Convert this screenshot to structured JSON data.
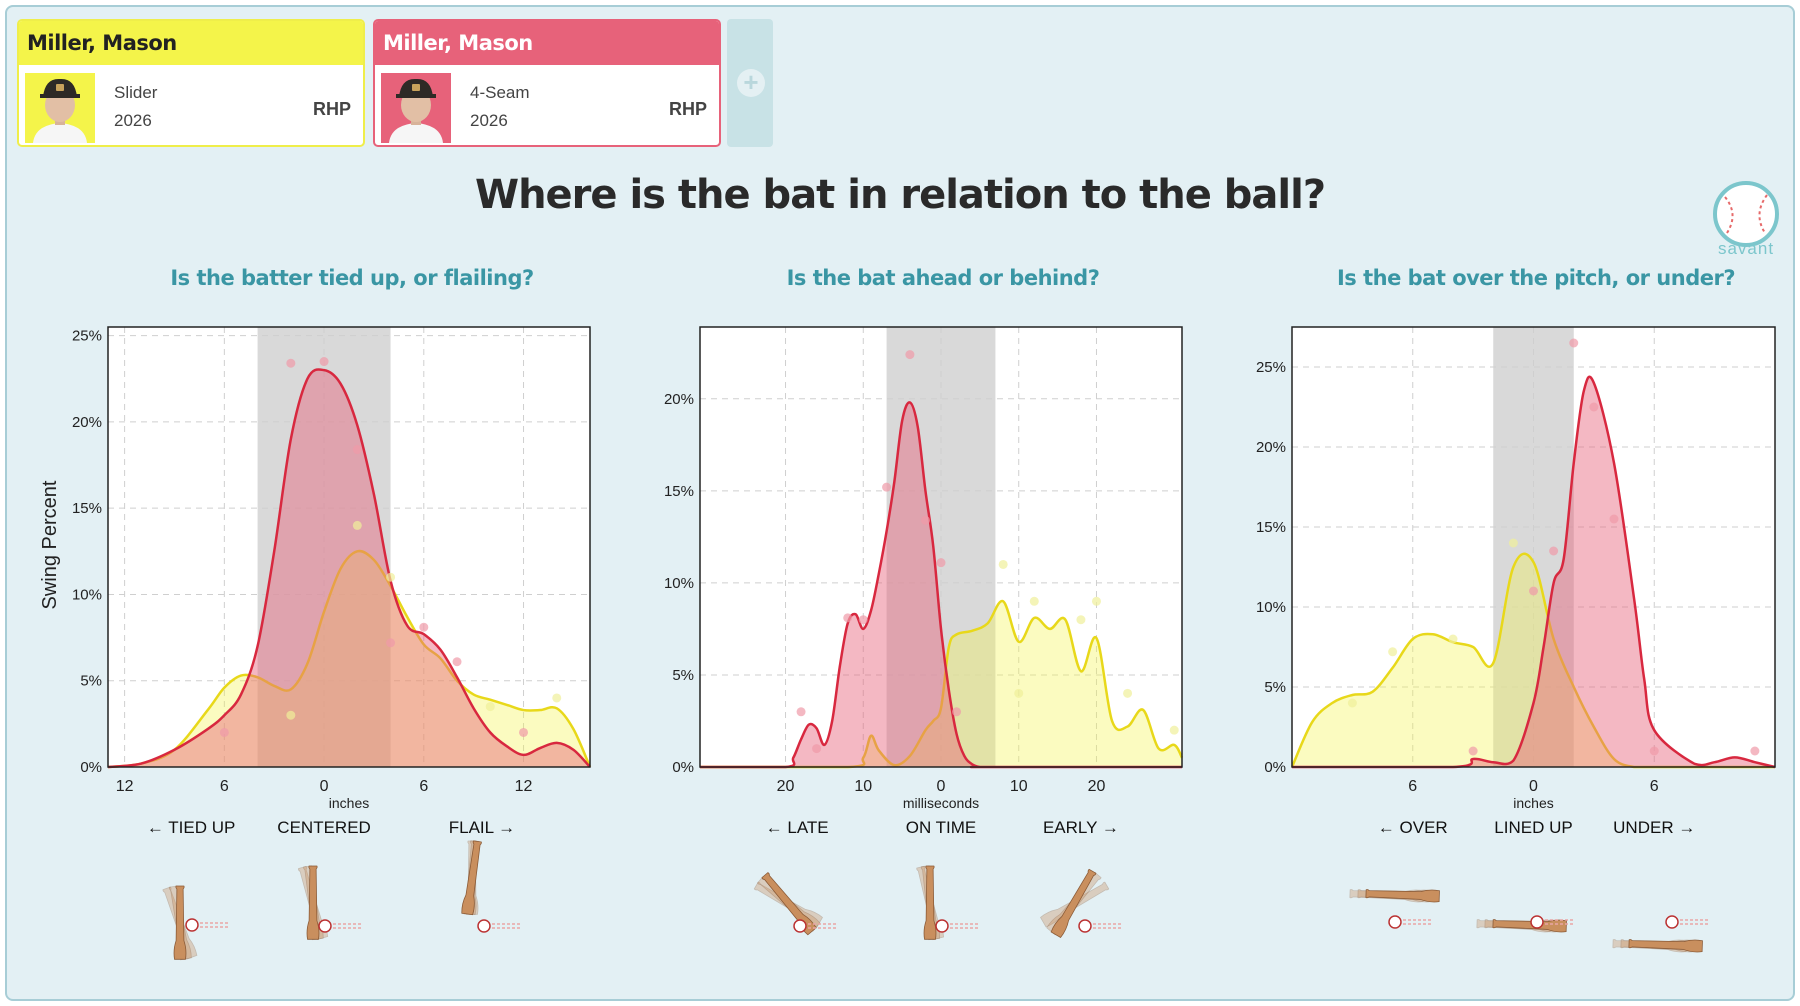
{
  "players": [
    {
      "name": "Miller, Mason",
      "pitch": "Slider",
      "year": "2026",
      "hand": "RHP",
      "color": "#f4f44a"
    },
    {
      "name": "Miller, Mason",
      "pitch": "4-Seam",
      "year": "2026",
      "hand": "RHP",
      "color": "#e7627a"
    }
  ],
  "add_button": "+",
  "title": "Where is the bat in relation to the ball?",
  "logo": {
    "text": "savant",
    "icon": "baseball-icon"
  },
  "y_axis_label": "Swing Percent",
  "colors": {
    "slider": "#f4f44a",
    "fourseam": "#e7627a",
    "slider_line": "#e8d81a",
    "fourseam_line": "#d8283f",
    "band": "#d9d9d9"
  },
  "chart_data": [
    {
      "type": "area",
      "title": "Is the batter tied up, or flailing?",
      "xlabel": "inches",
      "ylabel": "Swing Percent",
      "xlim": [
        -13,
        16
      ],
      "ylim": [
        0,
        25.5
      ],
      "x_ticks": [
        {
          "v": -12,
          "label": "12"
        },
        {
          "v": -6,
          "label": "6"
        },
        {
          "v": 0,
          "label": "0"
        },
        {
          "v": 6,
          "label": "6"
        },
        {
          "v": 12,
          "label": "12"
        }
      ],
      "y_ticks": [
        {
          "v": 0,
          "label": "0%"
        },
        {
          "v": 5,
          "label": "5%"
        },
        {
          "v": 10,
          "label": "10%"
        },
        {
          "v": 15,
          "label": "15%"
        },
        {
          "v": 20,
          "label": "20%"
        },
        {
          "v": 25,
          "label": "25%"
        }
      ],
      "band": [
        -4,
        4
      ],
      "zones": [
        {
          "label": "← TIED UP",
          "v": -8
        },
        {
          "label": "CENTERED",
          "v": 0
        },
        {
          "label": "FLAIL →",
          "v": 9.5
        }
      ],
      "series": [
        {
          "name": "Slider",
          "x": [
            -13,
            -11,
            -9,
            -7,
            -6,
            -5,
            -4,
            -3,
            -2,
            -1,
            0,
            1,
            2,
            3,
            4,
            5,
            6,
            7,
            8,
            9,
            10,
            11,
            12,
            13,
            14,
            15,
            16
          ],
          "y": [
            0,
            0.2,
            1,
            3.3,
            4.6,
            5.3,
            5.2,
            4.7,
            4.5,
            6,
            9,
            11.5,
            12.5,
            12,
            10.5,
            8.7,
            7.1,
            6.3,
            5,
            4.2,
            3.9,
            3.6,
            3.3,
            3.3,
            3.4,
            2.2,
            0
          ]
        },
        {
          "name": "4-Seam",
          "x": [
            -13,
            -11,
            -9,
            -7,
            -6,
            -5,
            -4,
            -3,
            -2,
            -1,
            0,
            1,
            2,
            3,
            4,
            5,
            6,
            7,
            8,
            9,
            10,
            11,
            12,
            13,
            14,
            15,
            16
          ],
          "y": [
            0,
            0.2,
            1,
            2.2,
            3,
            4.2,
            7,
            12.5,
            19,
            22.5,
            23,
            22.2,
            19.8,
            15.8,
            10.8,
            8.2,
            7.7,
            6.8,
            5.2,
            3.4,
            2,
            1.2,
            0.7,
            1.1,
            1.4,
            1,
            0
          ]
        }
      ],
      "points": [
        {
          "s": 1,
          "x": -2,
          "y": 23.4
        },
        {
          "s": 1,
          "x": 0,
          "y": 23.5
        },
        {
          "s": 1,
          "x": 2,
          "y": 18.4
        },
        {
          "s": 1,
          "x": 4,
          "y": 7.2
        },
        {
          "s": 1,
          "x": 6,
          "y": 8.1
        },
        {
          "s": 1,
          "x": 8,
          "y": 6.1
        },
        {
          "s": 1,
          "x": 12,
          "y": 2
        },
        {
          "s": 1,
          "x": -6,
          "y": 2
        },
        {
          "s": 0,
          "x": 2,
          "y": 14
        },
        {
          "s": 0,
          "x": 4,
          "y": 11
        },
        {
          "s": 0,
          "x": -2,
          "y": 3
        },
        {
          "s": 0,
          "x": 14,
          "y": 4
        },
        {
          "s": 0,
          "x": 10,
          "y": 3.5
        }
      ]
    },
    {
      "type": "area",
      "title": "Is the bat ahead or behind?",
      "xlabel": "milliseconds",
      "ylabel": "",
      "xlim": [
        -31,
        31
      ],
      "ylim": [
        0,
        23.9
      ],
      "x_ticks": [
        {
          "v": -20,
          "label": "20"
        },
        {
          "v": -10,
          "label": "10"
        },
        {
          "v": 0,
          "label": "0"
        },
        {
          "v": 10,
          "label": "10"
        },
        {
          "v": 20,
          "label": "20"
        }
      ],
      "y_ticks": [
        {
          "v": 0,
          "label": "0%"
        },
        {
          "v": 5,
          "label": "5%"
        },
        {
          "v": 10,
          "label": "10%"
        },
        {
          "v": 15,
          "label": "15%"
        },
        {
          "v": 20,
          "label": "20%"
        }
      ],
      "band": [
        -7,
        7
      ],
      "zones": [
        {
          "label": "← LATE",
          "v": -18.5
        },
        {
          "label": "ON TIME",
          "v": 0
        },
        {
          "label": "EARLY →",
          "v": 18
        }
      ],
      "series": [
        {
          "name": "Slider",
          "x": [
            -31,
            -12,
            -10,
            -9,
            -8,
            -6,
            -4,
            -2,
            -1,
            0,
            1,
            2,
            4,
            6,
            8,
            10,
            12,
            14,
            16,
            18,
            20,
            22,
            24,
            26,
            28,
            30,
            31
          ],
          "y": [
            0,
            0,
            0.5,
            1.7,
            0.9,
            0.1,
            0.6,
            2,
            2.5,
            3.2,
            6.5,
            7.2,
            7.4,
            7.8,
            9,
            6.8,
            8.1,
            7.5,
            8,
            5.2,
            7,
            2.5,
            2.2,
            3.1,
            1,
            1.2,
            0.5
          ]
        },
        {
          "name": "4-Seam",
          "x": [
            -31,
            -20,
            -19,
            -18,
            -17,
            -16,
            -15,
            -14,
            -13,
            -12,
            -11,
            -10,
            -9,
            -8,
            -7,
            -6,
            -5,
            -4,
            -3,
            -2,
            -1,
            0,
            1,
            2,
            3,
            4,
            5,
            6,
            31
          ],
          "y": [
            0,
            0,
            0.5,
            1.5,
            2.3,
            2.1,
            1.2,
            2.5,
            5.5,
            7.8,
            8.3,
            7.5,
            8.5,
            10.5,
            12.8,
            15.5,
            18.8,
            19.8,
            18.5,
            15,
            12,
            7.5,
            4.2,
            1.8,
            0.6,
            0.15,
            0,
            0,
            0
          ]
        }
      ],
      "points": [
        {
          "s": 1,
          "x": -4,
          "y": 22.4
        },
        {
          "s": 1,
          "x": -7,
          "y": 15.2
        },
        {
          "s": 1,
          "x": -2,
          "y": 13.4
        },
        {
          "s": 1,
          "x": 0,
          "y": 11.1
        },
        {
          "s": 1,
          "x": -10,
          "y": 8
        },
        {
          "s": 1,
          "x": -12,
          "y": 8.1
        },
        {
          "s": 1,
          "x": -18,
          "y": 3
        },
        {
          "s": 1,
          "x": -16,
          "y": 1
        },
        {
          "s": 1,
          "x": 2,
          "y": 3
        },
        {
          "s": 0,
          "x": 8,
          "y": 11
        },
        {
          "s": 0,
          "x": 12,
          "y": 9
        },
        {
          "s": 0,
          "x": 18,
          "y": 8
        },
        {
          "s": 0,
          "x": 20,
          "y": 9
        },
        {
          "s": 0,
          "x": 10,
          "y": 4
        },
        {
          "s": 0,
          "x": 24,
          "y": 4
        },
        {
          "s": 0,
          "x": 30,
          "y": 2
        }
      ]
    },
    {
      "type": "area",
      "title": "Is the bat over the pitch, or under?",
      "xlabel": "inches",
      "ylabel": "",
      "xlim": [
        -12,
        12
      ],
      "ylim": [
        0,
        27.5
      ],
      "x_ticks": [
        {
          "v": -6,
          "label": "6"
        },
        {
          "v": 0,
          "label": "0"
        },
        {
          "v": 6,
          "label": "6"
        }
      ],
      "y_ticks": [
        {
          "v": 0,
          "label": "0%"
        },
        {
          "v": 5,
          "label": "5%"
        },
        {
          "v": 10,
          "label": "10%"
        },
        {
          "v": 15,
          "label": "15%"
        },
        {
          "v": 20,
          "label": "20%"
        },
        {
          "v": 25,
          "label": "25%"
        }
      ],
      "band": [
        -2,
        2
      ],
      "zones": [
        {
          "label": "← OVER",
          "v": -6
        },
        {
          "label": "LINED UP",
          "v": 0
        },
        {
          "label": "UNDER →",
          "v": 6
        }
      ],
      "series": [
        {
          "name": "Slider",
          "x": [
            -12,
            -11,
            -10,
            -9,
            -8,
            -7,
            -6,
            -5,
            -4,
            -3,
            -2,
            -1,
            0,
            1,
            2,
            3,
            4,
            5,
            6,
            12
          ],
          "y": [
            0,
            2.8,
            4,
            4.5,
            4.7,
            6.2,
            8,
            8.3,
            7.8,
            7.5,
            6.5,
            12.5,
            12.8,
            8,
            5,
            2.5,
            0.5,
            0,
            0,
            0
          ]
        },
        {
          "name": "4-Seam",
          "x": [
            -12,
            -4,
            -3,
            -2,
            -1,
            0,
            0.5,
            1,
            1.5,
            2,
            2.5,
            3,
            4,
            5,
            5.5,
            6,
            8,
            9,
            10,
            11,
            12
          ],
          "y": [
            0,
            0,
            0.5,
            0.3,
            0.4,
            4,
            7.5,
            11.5,
            13,
            19,
            23.5,
            24,
            19,
            10.5,
            5.5,
            2.3,
            0.2,
            0.3,
            0.6,
            0.3,
            0
          ]
        }
      ],
      "points": [
        {
          "s": 1,
          "x": 2,
          "y": 26.5
        },
        {
          "s": 1,
          "x": 3,
          "y": 22.5
        },
        {
          "s": 1,
          "x": 4,
          "y": 15.5
        },
        {
          "s": 1,
          "x": 0,
          "y": 11
        },
        {
          "s": 1,
          "x": 1,
          "y": 13.5
        },
        {
          "s": 1,
          "x": -3,
          "y": 1
        },
        {
          "s": 1,
          "x": 6,
          "y": 1
        },
        {
          "s": 1,
          "x": 11,
          "y": 1
        },
        {
          "s": 0,
          "x": -1,
          "y": 14
        },
        {
          "s": 0,
          "x": -4,
          "y": 8
        },
        {
          "s": 0,
          "x": -7,
          "y": 7.2
        },
        {
          "s": 0,
          "x": -9,
          "y": 4
        }
      ]
    }
  ]
}
